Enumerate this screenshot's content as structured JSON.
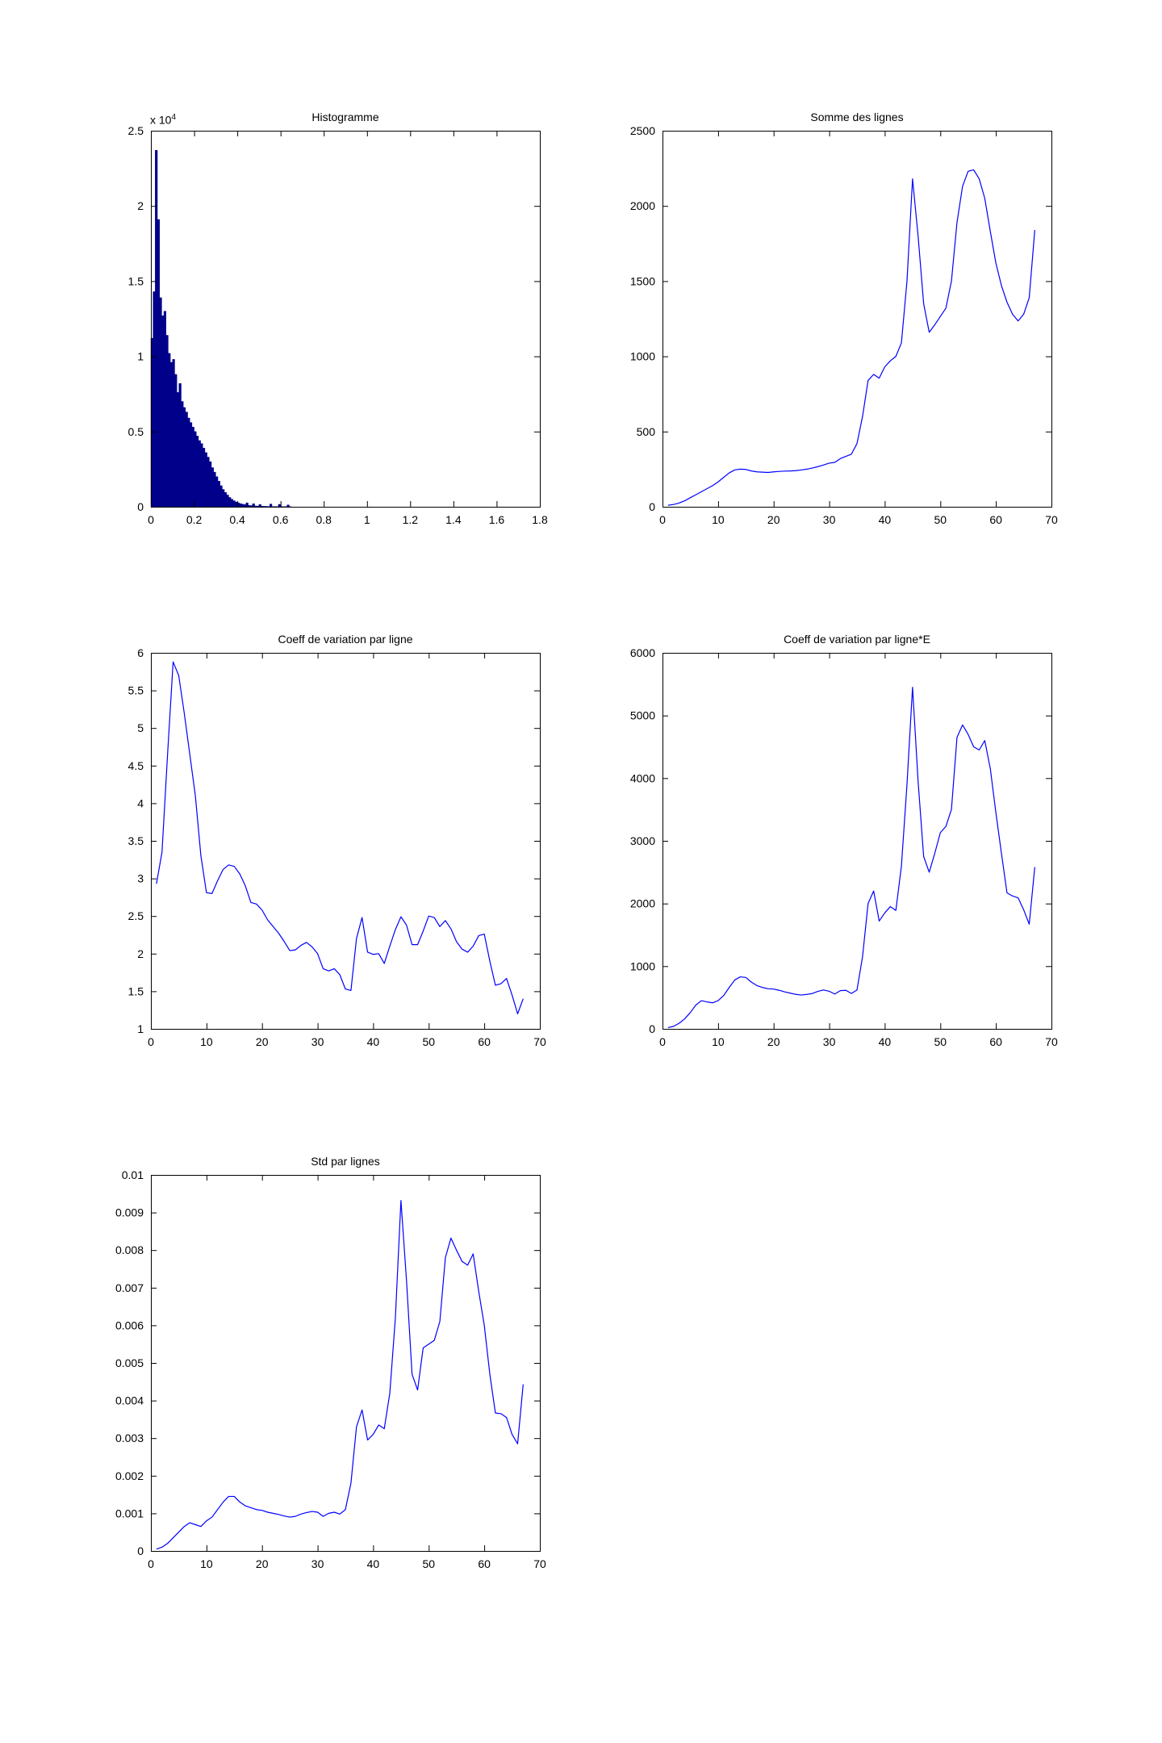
{
  "figure": {
    "background": "#ffffff",
    "axis_color": "#000000",
    "line_color": "#0000ff",
    "bar_fill_color": "#00008b",
    "tick_length": 7
  },
  "chart_data": [
    {
      "id": "histogramme",
      "type": "bar",
      "title": "Histogramme",
      "y_exponent_base": "x 10",
      "y_exponent_power": "4",
      "xlim": [
        0,
        1.8
      ],
      "ylim": [
        0,
        25000
      ],
      "xticks": [
        0,
        0.2,
        0.4,
        0.6,
        0.8,
        1,
        1.2,
        1.4,
        1.6,
        1.8
      ],
      "xtick_labels": [
        "0",
        "0.2",
        "0.4",
        "0.6",
        "0.8",
        "1",
        "1.2",
        "1.4",
        "1.6",
        "1.8"
      ],
      "yticks": [
        0,
        5000,
        10000,
        15000,
        20000,
        25000
      ],
      "ytick_labels": [
        "0",
        "0.5",
        "1",
        "1.5",
        "2",
        "2.5"
      ],
      "grid": false,
      "legend": null,
      "bin_start": 0,
      "bin_width": 0.01,
      "values": [
        11200,
        14300,
        23700,
        19100,
        13900,
        12700,
        13000,
        11400,
        10200,
        9600,
        9800,
        8800,
        7600,
        8200,
        7000,
        6600,
        6300,
        5900,
        5600,
        5300,
        5000,
        4700,
        4400,
        4200,
        3900,
        3600,
        3300,
        3000,
        2600,
        2300,
        2000,
        1700,
        1400,
        1150,
        950,
        780,
        620,
        500,
        400,
        320,
        260,
        210,
        170,
        140,
        260,
        90,
        75,
        200,
        55,
        45,
        150,
        35,
        30,
        25,
        20,
        180,
        15,
        12,
        10,
        160,
        8,
        6,
        5,
        120,
        4
      ]
    },
    {
      "id": "somme-des-lignes",
      "type": "line",
      "title": "Somme des lignes",
      "xlim": [
        0,
        70
      ],
      "ylim": [
        0,
        2500
      ],
      "xticks": [
        0,
        10,
        20,
        30,
        40,
        50,
        60,
        70
      ],
      "xtick_labels": [
        "0",
        "10",
        "20",
        "30",
        "40",
        "50",
        "60",
        "70"
      ],
      "yticks": [
        0,
        500,
        1000,
        1500,
        2000,
        2500
      ],
      "ytick_labels": [
        "0",
        "500",
        "1000",
        "1500",
        "2000",
        "2500"
      ],
      "grid": false,
      "legend": null,
      "x_start": 1,
      "x_step": 1,
      "values": [
        10,
        15,
        25,
        40,
        60,
        80,
        100,
        120,
        140,
        165,
        195,
        225,
        245,
        250,
        248,
        238,
        232,
        230,
        228,
        232,
        235,
        237,
        238,
        240,
        245,
        250,
        258,
        267,
        278,
        290,
        295,
        320,
        335,
        350,
        420,
        600,
        840,
        880,
        855,
        930,
        970,
        1000,
        1090,
        1500,
        2180,
        1800,
        1350,
        1160,
        1210,
        1265,
        1320,
        1500,
        1890,
        2130,
        2230,
        2240,
        2180,
        2050,
        1830,
        1620,
        1470,
        1360,
        1280,
        1235,
        1280,
        1390,
        1840
      ]
    },
    {
      "id": "coeff-de-variation-par-ligne",
      "type": "line",
      "title": "Coeff de variation par ligne",
      "xlim": [
        0,
        70
      ],
      "ylim": [
        1,
        6
      ],
      "xticks": [
        0,
        10,
        20,
        30,
        40,
        50,
        60,
        70
      ],
      "xtick_labels": [
        "0",
        "10",
        "20",
        "30",
        "40",
        "50",
        "60",
        "70"
      ],
      "yticks": [
        1,
        1.5,
        2,
        2.5,
        3,
        3.5,
        4,
        4.5,
        5,
        5.5,
        6
      ],
      "ytick_labels": [
        "1",
        "1.5",
        "2",
        "2.5",
        "3",
        "3.5",
        "4",
        "4.5",
        "5",
        "5.5",
        "6"
      ],
      "grid": false,
      "legend": null,
      "x_start": 1,
      "x_step": 1,
      "values": [
        2.93,
        3.35,
        4.65,
        5.88,
        5.7,
        5.2,
        4.65,
        4.1,
        3.3,
        2.81,
        2.8,
        2.97,
        3.12,
        3.18,
        3.16,
        3.06,
        2.9,
        2.68,
        2.66,
        2.58,
        2.45,
        2.36,
        2.27,
        2.16,
        2.04,
        2.05,
        2.11,
        2.15,
        2.09,
        2.0,
        1.8,
        1.77,
        1.8,
        1.72,
        1.53,
        1.51,
        2.2,
        2.48,
        2.02,
        1.99,
        2.0,
        1.87,
        2.1,
        2.32,
        2.49,
        2.38,
        2.12,
        2.12,
        2.3,
        2.5,
        2.48,
        2.36,
        2.44,
        2.33,
        2.16,
        2.06,
        2.02,
        2.1,
        2.24,
        2.26,
        1.9,
        1.58,
        1.6,
        1.67,
        1.45,
        1.2,
        1.4
      ]
    },
    {
      "id": "coeff-de-variation-par-ligne-e",
      "type": "line",
      "title": "Coeff de variation par ligne*E",
      "xlim": [
        0,
        70
      ],
      "ylim": [
        0,
        6000
      ],
      "xticks": [
        0,
        10,
        20,
        30,
        40,
        50,
        60,
        70
      ],
      "xtick_labels": [
        "0",
        "10",
        "20",
        "30",
        "40",
        "50",
        "60",
        "70"
      ],
      "yticks": [
        0,
        1000,
        2000,
        3000,
        4000,
        5000,
        6000
      ],
      "ytick_labels": [
        "0",
        "1000",
        "2000",
        "3000",
        "4000",
        "5000",
        "6000"
      ],
      "grid": false,
      "legend": null,
      "x_start": 1,
      "x_step": 1,
      "values": [
        20,
        40,
        90,
        160,
        260,
        380,
        450,
        430,
        415,
        450,
        530,
        660,
        780,
        830,
        820,
        745,
        690,
        660,
        640,
        635,
        615,
        590,
        570,
        550,
        540,
        550,
        565,
        600,
        620,
        600,
        555,
        610,
        615,
        565,
        620,
        1150,
        2000,
        2200,
        1720,
        1850,
        1950,
        1890,
        2600,
        3900,
        5450,
        3950,
        2750,
        2500,
        2800,
        3130,
        3230,
        3500,
        4650,
        4850,
        4700,
        4500,
        4450,
        4600,
        4150,
        3450,
        2800,
        2170,
        2120,
        2090,
        1900,
        1670,
        2580
      ]
    },
    {
      "id": "std-par-lignes",
      "type": "line",
      "title": "Std par lignes",
      "xlim": [
        0,
        70
      ],
      "ylim": [
        0,
        0.01
      ],
      "xticks": [
        0,
        10,
        20,
        30,
        40,
        50,
        60,
        70
      ],
      "xtick_labels": [
        "0",
        "10",
        "20",
        "30",
        "40",
        "50",
        "60",
        "70"
      ],
      "yticks": [
        0,
        0.001,
        0.002,
        0.003,
        0.004,
        0.005,
        0.006,
        0.007,
        0.008,
        0.009,
        0.01
      ],
      "ytick_labels": [
        "0",
        "0.001",
        "0.002",
        "0.003",
        "0.004",
        "0.005",
        "0.006",
        "0.007",
        "0.008",
        "0.009",
        "0.01"
      ],
      "grid": false,
      "legend": null,
      "x_start": 1,
      "x_step": 1,
      "values": [
        5e-05,
        0.0001,
        0.0002,
        0.00035,
        0.0005,
        0.00065,
        0.00075,
        0.0007,
        0.00065,
        0.0008,
        0.0009,
        0.0011,
        0.0013,
        0.00145,
        0.00145,
        0.0013,
        0.0012,
        0.00115,
        0.0011,
        0.00108,
        0.00103,
        0.001,
        0.00097,
        0.00093,
        0.0009,
        0.00092,
        0.00098,
        0.00102,
        0.00105,
        0.00103,
        0.00092,
        0.001,
        0.00103,
        0.00098,
        0.0011,
        0.0018,
        0.0033,
        0.00375,
        0.00295,
        0.0031,
        0.00335,
        0.00325,
        0.0042,
        0.0062,
        0.00932,
        0.0072,
        0.0047,
        0.00428,
        0.0054,
        0.0055,
        0.0056,
        0.0061,
        0.0078,
        0.00832,
        0.008,
        0.0077,
        0.0076,
        0.0079,
        0.0069,
        0.006,
        0.0047,
        0.00367,
        0.00365,
        0.00355,
        0.0031,
        0.00285,
        0.00443
      ]
    }
  ]
}
